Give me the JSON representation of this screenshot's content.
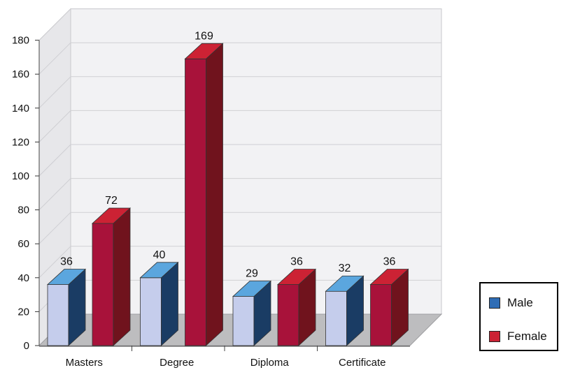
{
  "chart_data": {
    "type": "bar",
    "categories": [
      "Masters",
      "Degree",
      "Diploma",
      "Certificate"
    ],
    "series": [
      {
        "name": "Male",
        "values": [
          36,
          40,
          29,
          32
        ],
        "color": "#2f6db5",
        "front_color": "#c5cdec"
      },
      {
        "name": "Female",
        "values": [
          72,
          169,
          36,
          36
        ],
        "color": "#cc2234",
        "front_color": "#a8123a"
      }
    ],
    "ylim": [
      0,
      180
    ],
    "yticks": [
      0,
      20,
      40,
      60,
      80,
      100,
      120,
      140,
      160,
      180
    ],
    "grid": true,
    "three_d": true,
    "legend_position": "right",
    "title": "",
    "xlabel": "",
    "ylabel": ""
  }
}
